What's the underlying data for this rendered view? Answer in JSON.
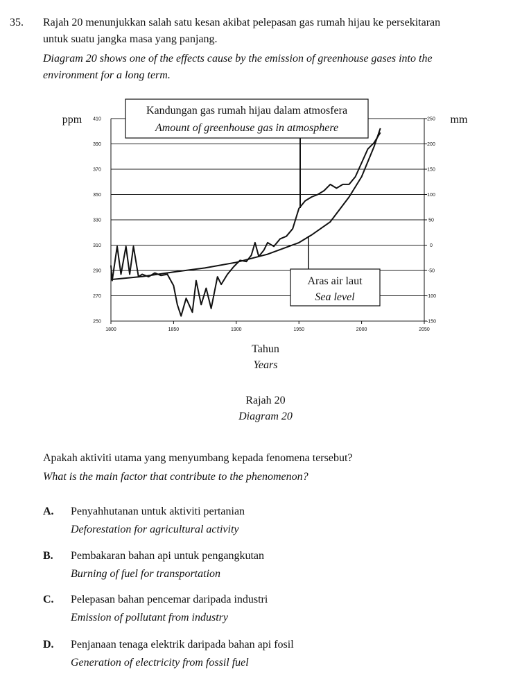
{
  "question": {
    "number": "35.",
    "stem_ms": [
      "Rajah 20 menunjukkan salah satu kesan akibat pelepasan gas rumah hijau ke persekitaran",
      "untuk suatu jangka masa yang panjang."
    ],
    "stem_en": [
      "Diagram 20 shows one of the effects cause by the emission of greenhouse gases into the",
      "environment for a long term."
    ],
    "x_label_ms": "Tahun",
    "x_label_en": "Years",
    "caption_ms": "Rajah 20",
    "caption_en": "Diagram 20",
    "prompt_ms": "Apakah aktiviti utama yang menyumbang kepada fenomena tersebut?",
    "prompt_en": "What is the main factor that contribute to the phenomenon?",
    "options": [
      {
        "letter": "A.",
        "ms": "Penyahhutanan untuk aktiviti pertanian",
        "en": "Deforestation for agricultural activity"
      },
      {
        "letter": "B.",
        "ms": "Pembakaran bahan api untuk pengangkutan",
        "en": "Burning of fuel for transportation"
      },
      {
        "letter": "C.",
        "ms": "Pelepasan bahan pencemar daripada industri",
        "en": "Emission of pollutant from industry"
      },
      {
        "letter": "D.",
        "ms": "Penjanaan tenaga elektrik daripada bahan api fosil",
        "en": "Generation of electricity from fossil fuel"
      }
    ]
  },
  "chart_data": {
    "type": "line",
    "y_label": "ppm",
    "y2_label": "mm",
    "xlim": [
      1800,
      2050
    ],
    "xticks": [
      1800,
      1850,
      1900,
      1950,
      2000,
      2050
    ],
    "ylim": [
      250,
      410
    ],
    "yticks": [
      250,
      270,
      290,
      310,
      330,
      350,
      370,
      390,
      410
    ],
    "y2lim": [
      -150,
      250
    ],
    "y2ticks": [
      -150,
      -100,
      -50,
      0,
      50,
      100,
      150,
      200,
      250
    ],
    "grid": true,
    "series": [
      {
        "name": "Kandungan gas rumah hijau dalam atmosfera",
        "name_en": "Amount of greenhouse gas in atmosphere",
        "color": "#111111",
        "x": [
          1800,
          1801,
          1805,
          1808,
          1812,
          1815,
          1818,
          1822,
          1825,
          1830,
          1835,
          1840,
          1845,
          1850,
          1853,
          1856,
          1860,
          1865,
          1868,
          1872,
          1876,
          1880,
          1885,
          1888,
          1893,
          1898,
          1903,
          1908,
          1912,
          1915,
          1918,
          1922,
          1925,
          1930,
          1935,
          1940,
          1945,
          1950,
          1955,
          1960,
          1965,
          1970,
          1975,
          1980,
          1985,
          1990,
          1995,
          2000,
          2005,
          2010,
          2015
        ],
        "values": [
          294,
          282,
          309,
          287,
          309,
          287,
          309,
          285,
          287,
          285,
          288,
          286,
          287,
          278,
          263,
          254,
          268,
          257,
          282,
          263,
          276,
          260,
          285,
          279,
          287,
          293,
          298,
          297,
          302,
          312,
          301,
          306,
          312,
          309,
          315,
          317,
          323,
          339,
          345,
          348,
          350,
          353,
          358,
          355,
          358,
          358,
          364,
          375,
          386,
          391,
          399
        ]
      },
      {
        "name": "Aras air laut",
        "name_en": "Sea level",
        "color": "#111111",
        "axis": "y2",
        "x": [
          1800,
          1825,
          1850,
          1875,
          1900,
          1925,
          1950,
          1960,
          1975,
          1990,
          2000,
          2010,
          2015
        ],
        "values": [
          -68,
          -62,
          -53,
          -45,
          -34,
          -18,
          5,
          20,
          46,
          95,
          135,
          195,
          231
        ]
      }
    ]
  }
}
